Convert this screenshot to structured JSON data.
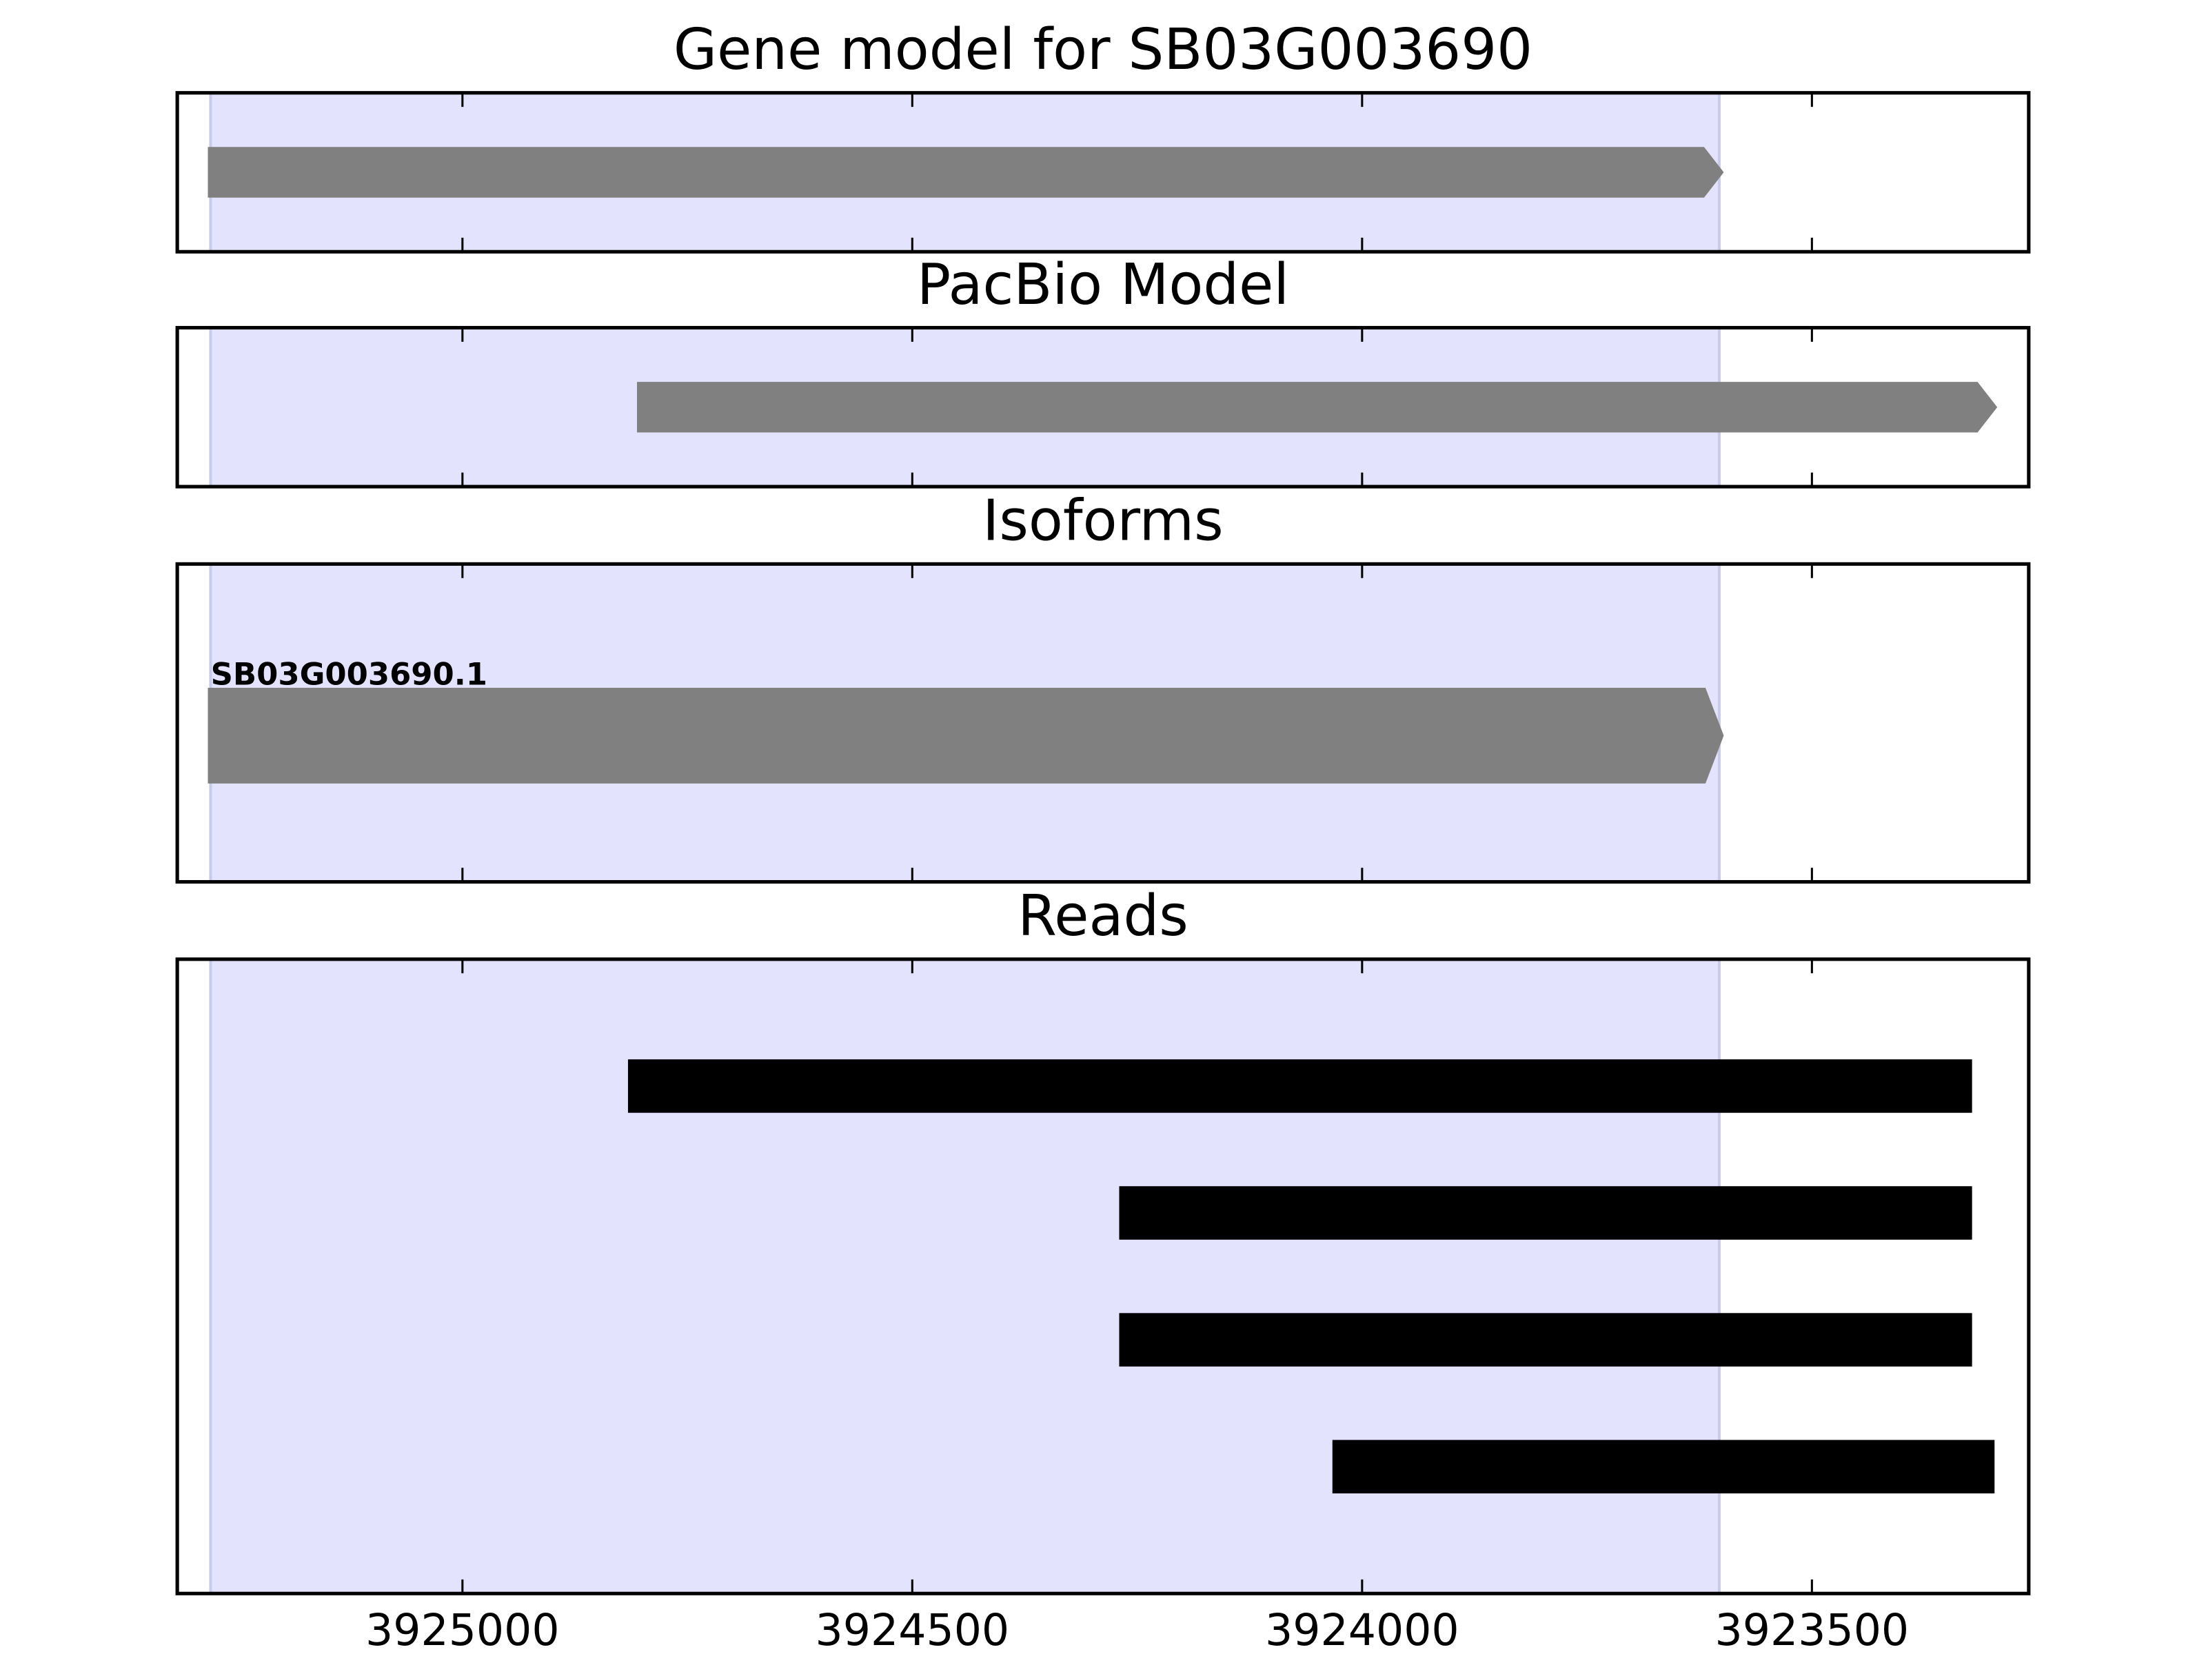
{
  "chart_data": [
    {
      "type": "gene-track",
      "title": "Gene model for SB03G003690",
      "xlim": [
        3925317,
        3923259
      ],
      "xticks": [
        3925000,
        3924500,
        3924000,
        3923500
      ],
      "highlight": [
        3925280,
        3923603
      ],
      "color": "#808080",
      "highlight_color": "#e3e3fd",
      "features": [
        {
          "start": 3925283,
          "end": 3923598
        }
      ]
    },
    {
      "type": "gene-track",
      "title": "PacBio Model",
      "xlim": [
        3925317,
        3923259
      ],
      "xticks": [
        3925000,
        3924500,
        3924000,
        3923500
      ],
      "highlight": [
        3925280,
        3923603
      ],
      "color": "#808080",
      "highlight_color": "#e3e3fd",
      "features": [
        {
          "start": 3924806,
          "end": 3923294
        }
      ]
    },
    {
      "type": "gene-track",
      "title": "Isoforms",
      "xlim": [
        3925317,
        3923259
      ],
      "xticks": [
        3925000,
        3924500,
        3924000,
        3923500
      ],
      "highlight": [
        3925280,
        3923603
      ],
      "color": "#808080",
      "highlight_color": "#e3e3fd",
      "features": [
        {
          "label": "SB03G003690.1",
          "start": 3925283,
          "end": 3923598
        }
      ]
    },
    {
      "type": "reads",
      "title": "Reads",
      "xlim": [
        3925317,
        3923259
      ],
      "xticks": [
        3925000,
        3924500,
        3924000,
        3923500
      ],
      "highlight": [
        3925280,
        3923603
      ],
      "color": "#000000",
      "highlight_color": "#e3e3fd",
      "features": [
        {
          "start": 3924816,
          "end": 3923322
        },
        {
          "start": 3924270,
          "end": 3923322
        },
        {
          "start": 3924270,
          "end": 3923322
        },
        {
          "start": 3924033,
          "end": 3923297
        }
      ]
    }
  ]
}
